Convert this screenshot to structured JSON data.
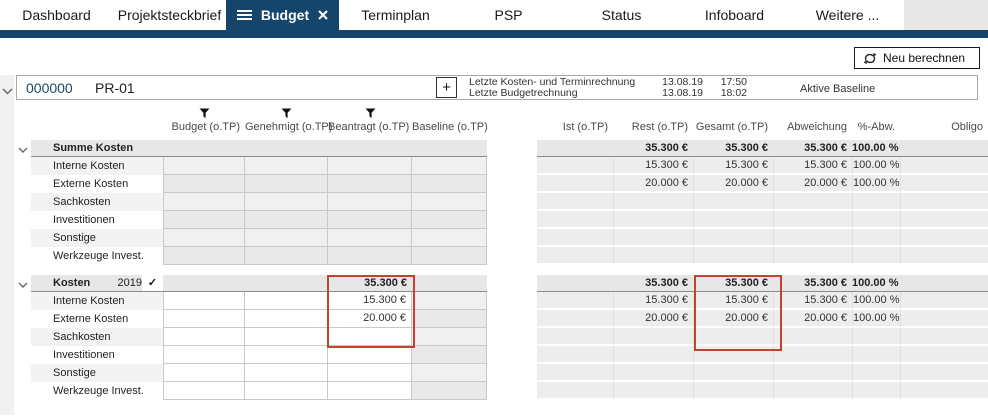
{
  "tabbar": {
    "active_index": 2,
    "tabs": [
      "Dashboard",
      "Projektsteckbrief",
      "Budget",
      "Terminplan",
      "PSP",
      "Status",
      "Infoboard",
      "Weitere ..."
    ]
  },
  "toolbar": {
    "recalculate_label": "Neu berechnen"
  },
  "project": {
    "id": "000000",
    "code": "PR-01",
    "add_label": "+",
    "info": [
      {
        "label": "Letzte Kosten- und Terminrechnung",
        "date": "13.08.19",
        "time": "17:50"
      },
      {
        "label": "Letzte Budgetrechnung",
        "date": "13.08.19",
        "time": "18:02"
      }
    ],
    "baseline_label": "Aktive Baseline"
  },
  "table": {
    "left_columns": [
      {
        "label": "Budget (o.TP)",
        "filter_icon": true
      },
      {
        "label": "Genehmigt (o.TP)",
        "filter_icon": true
      },
      {
        "label": "Beantragt (o.TP)",
        "filter_icon": true
      },
      {
        "label": "Baseline (o.TP)",
        "filter_icon": false
      }
    ],
    "right_columns": [
      "Ist (o.TP)",
      "Rest (o.TP)",
      "Gesamt (o.TP)",
      "Abweichung",
      "%-Abw.",
      "Obligo"
    ],
    "sections": [
      {
        "title": "Summe Kosten",
        "year": "",
        "checked": false,
        "editable": false,
        "totals": {
          "budget": "",
          "genehmigt": "",
          "beantragt": "",
          "baseline": "",
          "ist": "",
          "rest": "35.300 €",
          "gesamt": "35.300 €",
          "abweichung": "35.300 €",
          "pct_abw": "100.00 %",
          "obligo": ""
        },
        "rows": [
          {
            "label": "Interne Kosten",
            "budget": "",
            "genehmigt": "",
            "beantragt": "",
            "baseline": "",
            "ist": "",
            "rest": "15.300 €",
            "gesamt": "15.300 €",
            "abweichung": "15.300 €",
            "pct_abw": "100.00 %",
            "obligo": ""
          },
          {
            "label": "Externe Kosten",
            "budget": "",
            "genehmigt": "",
            "beantragt": "",
            "baseline": "",
            "ist": "",
            "rest": "20.000 €",
            "gesamt": "20.000 €",
            "abweichung": "20.000 €",
            "pct_abw": "100.00 %",
            "obligo": ""
          },
          {
            "label": "Sachkosten",
            "budget": "",
            "genehmigt": "",
            "beantragt": "",
            "baseline": "",
            "ist": "",
            "rest": "",
            "gesamt": "",
            "abweichung": "",
            "pct_abw": "",
            "obligo": ""
          },
          {
            "label": "Investitionen",
            "budget": "",
            "genehmigt": "",
            "beantragt": "",
            "baseline": "",
            "ist": "",
            "rest": "",
            "gesamt": "",
            "abweichung": "",
            "pct_abw": "",
            "obligo": ""
          },
          {
            "label": "Sonstige",
            "budget": "",
            "genehmigt": "",
            "beantragt": "",
            "baseline": "",
            "ist": "",
            "rest": "",
            "gesamt": "",
            "abweichung": "",
            "pct_abw": "",
            "obligo": ""
          },
          {
            "label": "Werkzeuge Invest.",
            "budget": "",
            "genehmigt": "",
            "beantragt": "",
            "baseline": "",
            "ist": "",
            "rest": "",
            "gesamt": "",
            "abweichung": "",
            "pct_abw": "",
            "obligo": ""
          }
        ]
      },
      {
        "title": "Kosten",
        "year": "2019",
        "checked": true,
        "check_glyph": "✓",
        "editable": true,
        "totals": {
          "budget": "",
          "genehmigt": "",
          "beantragt": "35.300 €",
          "baseline": "",
          "ist": "",
          "rest": "35.300 €",
          "gesamt": "35.300 €",
          "abweichung": "35.300 €",
          "pct_abw": "100.00 %",
          "obligo": ""
        },
        "rows": [
          {
            "label": "Interne Kosten",
            "budget": "",
            "genehmigt": "",
            "beantragt": "15.300 €",
            "baseline": "",
            "ist": "",
            "rest": "15.300 €",
            "gesamt": "15.300 €",
            "abweichung": "15.300 €",
            "pct_abw": "100.00 %",
            "obligo": ""
          },
          {
            "label": "Externe Kosten",
            "budget": "",
            "genehmigt": "",
            "beantragt": "20.000 €",
            "baseline": "",
            "ist": "",
            "rest": "20.000 €",
            "gesamt": "20.000 €",
            "abweichung": "20.000 €",
            "pct_abw": "100.00 %",
            "obligo": ""
          },
          {
            "label": "Sachkosten",
            "budget": "",
            "genehmigt": "",
            "beantragt": "",
            "baseline": "",
            "ist": "",
            "rest": "",
            "gesamt": "",
            "abweichung": "",
            "pct_abw": "",
            "obligo": ""
          },
          {
            "label": "Investitionen",
            "budget": "",
            "genehmigt": "",
            "beantragt": "",
            "baseline": "",
            "ist": "",
            "rest": "",
            "gesamt": "",
            "abweichung": "",
            "pct_abw": "",
            "obligo": ""
          },
          {
            "label": "Sonstige",
            "budget": "",
            "genehmigt": "",
            "beantragt": "",
            "baseline": "",
            "ist": "",
            "rest": "",
            "gesamt": "",
            "abweichung": "",
            "pct_abw": "",
            "obligo": ""
          },
          {
            "label": "Werkzeuge Invest.",
            "budget": "",
            "genehmigt": "",
            "beantragt": "",
            "baseline": "",
            "ist": "",
            "rest": "",
            "gesamt": "",
            "abweichung": "",
            "pct_abw": "",
            "obligo": ""
          }
        ]
      }
    ]
  },
  "highlights": {
    "color": "#c0452e",
    "boxes": [
      "beantragt-column-highlight",
      "gesamt-column-highlight"
    ]
  },
  "colors": {
    "accent_navy": "#16456b",
    "section_gray": "#e7e7e7",
    "readonly_gray": "#e9e9e9"
  }
}
